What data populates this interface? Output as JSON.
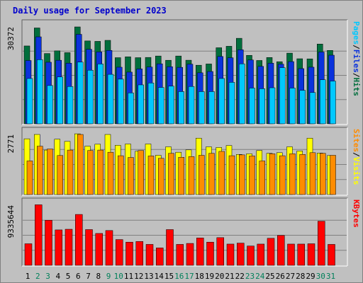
{
  "title": "Daily usage for September 2023",
  "colors": {
    "hits": "#006e3c",
    "files": "#0a32dc",
    "pages": "#00c8ff",
    "visits": "#ffff00",
    "sites": "#ff8c00",
    "kbytes": "#ff0000",
    "day_weekday": "#000000",
    "day_weekend": "#00805a"
  },
  "day_labels": [
    "1",
    "2",
    "3",
    "4",
    "5",
    "6",
    "7",
    "8",
    "9",
    "10",
    "11",
    "12",
    "13",
    "14",
    "15",
    "16",
    "17",
    "18",
    "19",
    "20",
    "21",
    "22",
    "23",
    "24",
    "25",
    "26",
    "27",
    "28",
    "29",
    "30",
    "31"
  ],
  "weekend_days": [
    2,
    3,
    9,
    10,
    16,
    17,
    23,
    24,
    30,
    31
  ],
  "chart_data": [
    {
      "type": "bar",
      "max_label": "30372",
      "ylim": [
        0,
        30372
      ],
      "legend": [
        "Pages",
        "/",
        "Files",
        "/",
        "Hits"
      ],
      "x": [
        1,
        2,
        3,
        4,
        5,
        6,
        7,
        8,
        9,
        10,
        11,
        12,
        13,
        14,
        15,
        16,
        17,
        18,
        19,
        20,
        21,
        22,
        23,
        24,
        25,
        26,
        27,
        28,
        29,
        30,
        31
      ],
      "series": [
        {
          "name": "Hits",
          "values": [
            24400,
            30040,
            22030,
            22860,
            22300,
            30370,
            25970,
            25840,
            26160,
            20730,
            20990,
            20730,
            20800,
            21250,
            19910,
            21250,
            19930,
            18360,
            18750,
            23840,
            24300,
            26800,
            21450,
            19850,
            20780,
            19460,
            22150,
            20390,
            20350,
            25000,
            23000
          ]
        },
        {
          "name": "Files",
          "values": [
            19840,
            27260,
            19300,
            19910,
            19000,
            28040,
            23350,
            22550,
            23000,
            17740,
            16200,
            17200,
            17800,
            18800,
            17900,
            17700,
            18700,
            15990,
            16400,
            21100,
            20700,
            23200,
            20000,
            18000,
            19000,
            18700,
            19500,
            17300,
            17750,
            22500,
            21500
          ]
        },
        {
          "name": "Pages",
          "values": [
            14200,
            20100,
            12000,
            14700,
            11700,
            19340,
            16800,
            18750,
            15500,
            14000,
            9690,
            12200,
            12800,
            11400,
            11800,
            10100,
            11700,
            10100,
            10100,
            14200,
            13000,
            18800,
            11200,
            11000,
            11300,
            17600,
            11200,
            10500,
            9800,
            13800,
            13400
          ]
        }
      ]
    },
    {
      "type": "bar",
      "max_label": "2771",
      "ylim": [
        0,
        2771
      ],
      "legend": [
        "Sites",
        "/",
        "Visits"
      ],
      "x": [
        1,
        2,
        3,
        4,
        5,
        6,
        7,
        8,
        9,
        10,
        11,
        12,
        13,
        14,
        15,
        16,
        17,
        18,
        19,
        20,
        21,
        22,
        23,
        24,
        25,
        26,
        27,
        28,
        29,
        30,
        31
      ],
      "series": [
        {
          "name": "Visits",
          "values": [
            2570,
            2770,
            2050,
            2550,
            2450,
            2800,
            2230,
            2320,
            2770,
            2270,
            2330,
            2000,
            2330,
            1810,
            2200,
            1950,
            2060,
            2600,
            2200,
            2170,
            2260,
            1850,
            1880,
            2030,
            1900,
            1930,
            2200,
            2010,
            2600,
            1910,
            1800
          ]
        },
        {
          "name": "Sites",
          "values": [
            1550,
            2230,
            2100,
            1800,
            2050,
            2770,
            2030,
            2050,
            1950,
            1790,
            1710,
            2030,
            1780,
            1670,
            1900,
            1720,
            1750,
            1810,
            1900,
            1990,
            1790,
            1830,
            1780,
            1550,
            1880,
            1790,
            1880,
            1850,
            1930,
            1900,
            1810
          ]
        }
      ]
    },
    {
      "type": "bar",
      "max_label": "9335644",
      "ylim": [
        0,
        9335644
      ],
      "legend": [
        "KBytes"
      ],
      "x": [
        1,
        2,
        3,
        4,
        5,
        6,
        7,
        8,
        9,
        10,
        11,
        12,
        13,
        14,
        15,
        16,
        17,
        18,
        19,
        20,
        21,
        22,
        23,
        24,
        25,
        26,
        27,
        28,
        29,
        30,
        31
      ],
      "series": [
        {
          "name": "KBytes",
          "values": [
            3350000,
            9400000,
            7000000,
            5500000,
            5600000,
            7900000,
            5550000,
            4950000,
            5400000,
            4000000,
            3600000,
            3700000,
            3250000,
            2700000,
            5550000,
            3250000,
            3400000,
            4250000,
            3600000,
            4300000,
            3300000,
            3450000,
            3000000,
            3300000,
            4200000,
            4650000,
            3300000,
            3300000,
            3350000,
            6850000,
            3250000
          ]
        }
      ]
    }
  ]
}
